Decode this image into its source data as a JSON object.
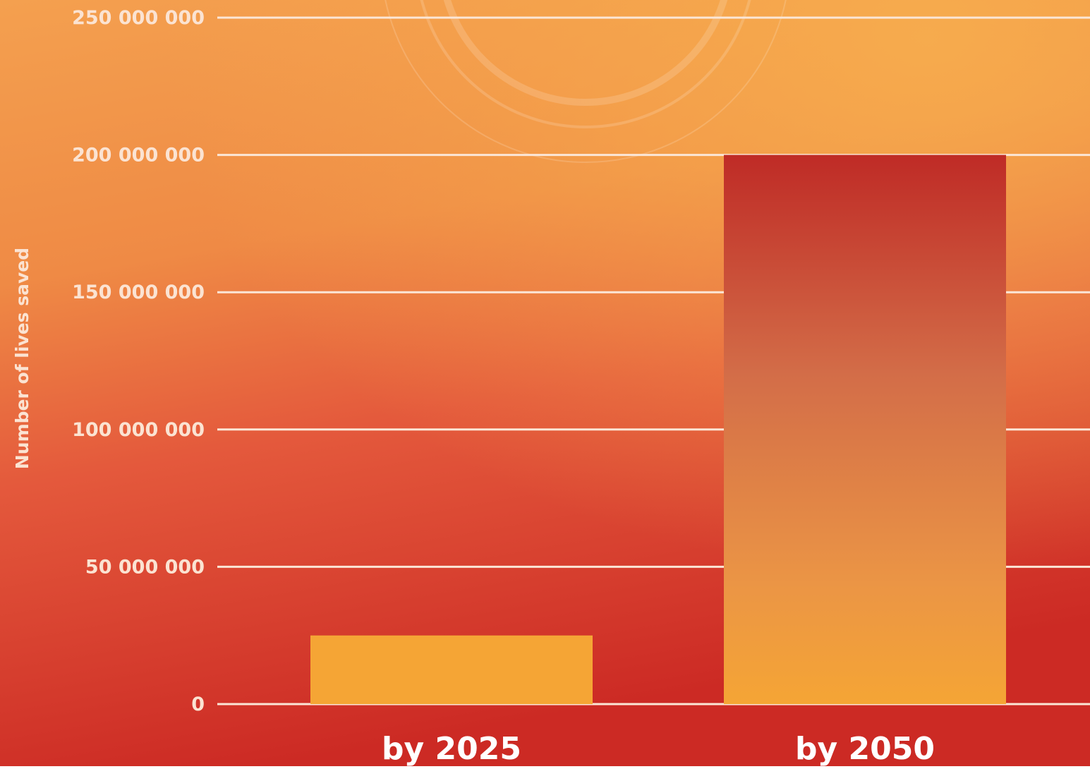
{
  "colors": {
    "background_top": "#f3a24a",
    "background_bottom": "#cf2b24",
    "bar_2025": "#f5a535",
    "bar_top": "#bf2b26",
    "bar_bottom": "#f5a535",
    "gridline": "#fbe6d6",
    "text": "#ffffff"
  },
  "chart_data": {
    "type": "bar",
    "categories": [
      "by 2025",
      "by 2050"
    ],
    "values": [
      25000000,
      200000000
    ],
    "ylabel": "Number of lives saved",
    "ylim": [
      0,
      250000000
    ],
    "yticks": [
      0,
      50000000,
      100000000,
      150000000,
      200000000,
      250000000
    ],
    "ytick_labels": [
      "0",
      "50 000 000",
      "100 000 000",
      "150 000 000",
      "200 000 000",
      "250 000 000"
    ],
    "grid": true,
    "legend": "none"
  }
}
